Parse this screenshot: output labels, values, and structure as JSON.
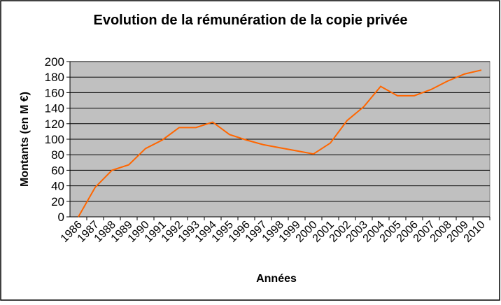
{
  "chart_data": {
    "type": "line",
    "title": "Evolution de la rémunération de la copie privée",
    "x_label": "Années",
    "y_label": "Montants (en M €)",
    "categories": [
      "1986",
      "1987",
      "1988",
      "1989",
      "1990",
      "1991",
      "1992",
      "1993",
      "1994",
      "1995",
      "1996",
      "1997",
      "1998",
      "1999",
      "2000",
      "2001",
      "2002",
      "2003",
      "2004",
      "2005",
      "2006",
      "2007",
      "2008",
      "2009",
      "2010"
    ],
    "series": [
      {
        "name": "Montants",
        "color": "#ff6600",
        "values": [
          0,
          38,
          60,
          67,
          88,
          99,
          115,
          115,
          122,
          106,
          99,
          93,
          89,
          85,
          81,
          95,
          124,
          142,
          168,
          156,
          156,
          164,
          175,
          184,
          189
        ]
      }
    ],
    "ylim": [
      0,
      200
    ],
    "yticks": [
      0,
      20,
      40,
      60,
      80,
      100,
      120,
      140,
      160,
      180,
      200
    ],
    "grid": true,
    "plot_background": "#c0c0c0"
  }
}
